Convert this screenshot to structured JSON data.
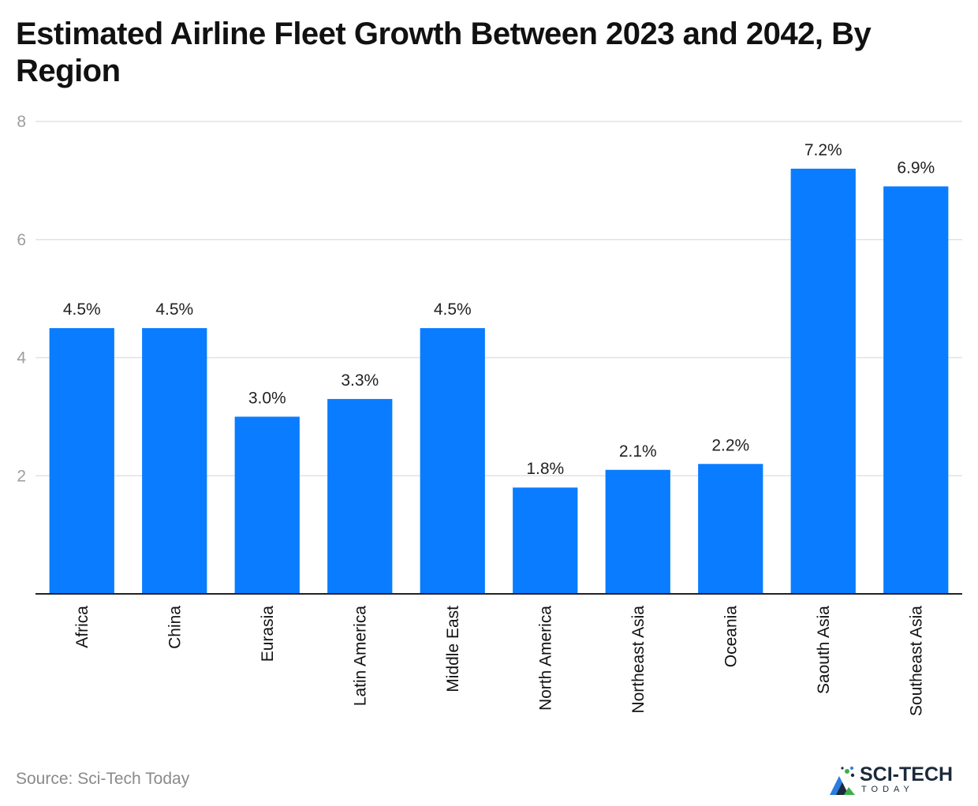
{
  "source": "Source: Sci-Tech Today",
  "brand": {
    "name": "SCI-TECH",
    "sub": "TODAY",
    "colors": {
      "dark": "#1b2a3a",
      "green": "#3fae49",
      "blue": "#2a7de1"
    }
  },
  "colors": {
    "bar": "#0a7cff",
    "grid": "#e2e2e2",
    "axis": "#222222"
  },
  "chart_data": {
    "type": "bar",
    "title": "Estimated Airline Fleet Growth Between 2023 and 2042, By Region",
    "xlabel": "",
    "ylabel": "",
    "ylim": [
      0,
      8
    ],
    "yticks": [
      2,
      4,
      6,
      8
    ],
    "grid": true,
    "categories": [
      "Africa",
      "China",
      "Eurasia",
      "Latin America",
      "Middle East",
      "North America",
      "Northeast Asia",
      "Oceania",
      "Saouth Asia",
      "Southeast Asia"
    ],
    "values": [
      4.5,
      4.5,
      3.0,
      3.3,
      4.5,
      1.8,
      2.1,
      2.2,
      7.2,
      6.9
    ],
    "data_labels": [
      "4.5%",
      "4.5%",
      "3.0%",
      "3.3%",
      "4.5%",
      "1.8%",
      "2.1%",
      "2.2%",
      "7.2%",
      "6.9%"
    ]
  }
}
